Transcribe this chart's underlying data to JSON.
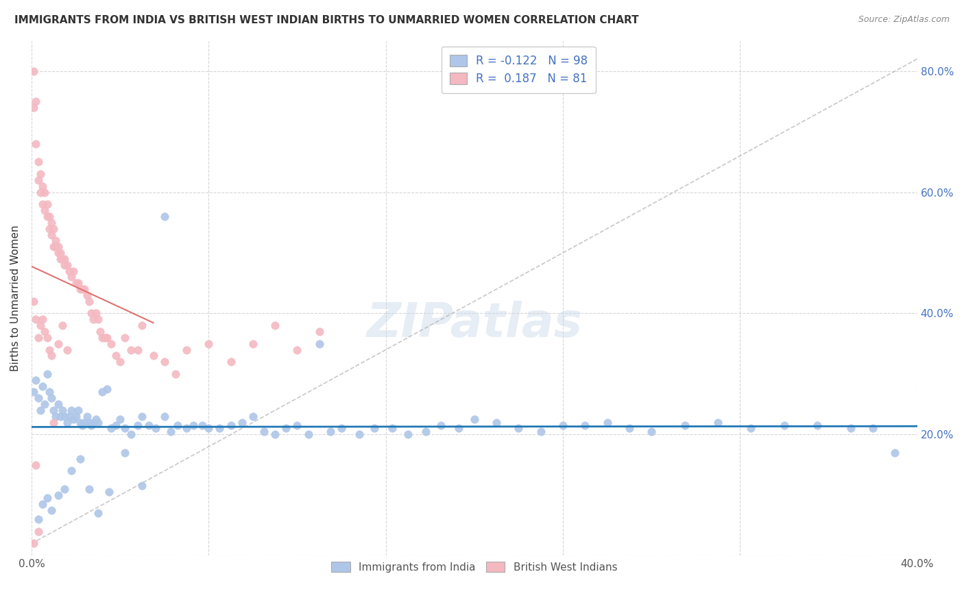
{
  "title": "IMMIGRANTS FROM INDIA VS BRITISH WEST INDIAN BIRTHS TO UNMARRIED WOMEN CORRELATION CHART",
  "source": "Source: ZipAtlas.com",
  "ylabel": "Births to Unmarried Women",
  "xlim": [
    0.0,
    0.4
  ],
  "ylim": [
    0.0,
    0.85
  ],
  "R_india": -0.122,
  "N_india": 98,
  "R_bwi": 0.187,
  "N_bwi": 81,
  "legend_labels": [
    "Immigrants from India",
    "British West Indians"
  ],
  "color_india": "#aec6e8",
  "color_bwi": "#f4b8c1",
  "trendline_india_color": "#1f77b4",
  "trendline_bwi_color": "#e07070",
  "trendline_dashed_color": "#b0b0b0",
  "watermark": "ZIPatlas",
  "india_x": [
    0.001,
    0.002,
    0.003,
    0.004,
    0.005,
    0.006,
    0.007,
    0.008,
    0.009,
    0.01,
    0.011,
    0.012,
    0.013,
    0.014,
    0.015,
    0.016,
    0.017,
    0.018,
    0.019,
    0.02,
    0.021,
    0.022,
    0.023,
    0.024,
    0.025,
    0.026,
    0.027,
    0.028,
    0.029,
    0.03,
    0.032,
    0.034,
    0.036,
    0.038,
    0.04,
    0.042,
    0.045,
    0.048,
    0.05,
    0.053,
    0.056,
    0.06,
    0.063,
    0.066,
    0.07,
    0.073,
    0.077,
    0.08,
    0.085,
    0.09,
    0.095,
    0.1,
    0.105,
    0.11,
    0.115,
    0.12,
    0.125,
    0.13,
    0.135,
    0.14,
    0.148,
    0.155,
    0.163,
    0.17,
    0.178,
    0.185,
    0.193,
    0.2,
    0.21,
    0.22,
    0.23,
    0.24,
    0.25,
    0.26,
    0.27,
    0.28,
    0.295,
    0.31,
    0.325,
    0.34,
    0.355,
    0.37,
    0.38,
    0.39,
    0.003,
    0.005,
    0.007,
    0.009,
    0.012,
    0.015,
    0.018,
    0.022,
    0.026,
    0.03,
    0.035,
    0.042,
    0.05,
    0.06
  ],
  "india_y": [
    0.27,
    0.29,
    0.26,
    0.24,
    0.28,
    0.25,
    0.3,
    0.27,
    0.26,
    0.24,
    0.23,
    0.25,
    0.23,
    0.24,
    0.23,
    0.22,
    0.23,
    0.24,
    0.225,
    0.23,
    0.24,
    0.22,
    0.215,
    0.22,
    0.23,
    0.22,
    0.215,
    0.22,
    0.225,
    0.22,
    0.27,
    0.275,
    0.21,
    0.215,
    0.225,
    0.21,
    0.2,
    0.215,
    0.23,
    0.215,
    0.21,
    0.23,
    0.205,
    0.215,
    0.21,
    0.215,
    0.215,
    0.21,
    0.21,
    0.215,
    0.22,
    0.23,
    0.205,
    0.2,
    0.21,
    0.215,
    0.2,
    0.35,
    0.205,
    0.21,
    0.2,
    0.21,
    0.21,
    0.2,
    0.205,
    0.215,
    0.21,
    0.225,
    0.22,
    0.21,
    0.205,
    0.215,
    0.215,
    0.22,
    0.21,
    0.205,
    0.215,
    0.22,
    0.21,
    0.215,
    0.215,
    0.21,
    0.21,
    0.17,
    0.06,
    0.085,
    0.095,
    0.075,
    0.1,
    0.11,
    0.14,
    0.16,
    0.11,
    0.07,
    0.105,
    0.17,
    0.115,
    0.56
  ],
  "bwi_x": [
    0.001,
    0.001,
    0.002,
    0.002,
    0.003,
    0.003,
    0.004,
    0.004,
    0.005,
    0.005,
    0.006,
    0.006,
    0.007,
    0.007,
    0.008,
    0.008,
    0.009,
    0.009,
    0.01,
    0.01,
    0.011,
    0.011,
    0.012,
    0.012,
    0.013,
    0.013,
    0.014,
    0.015,
    0.015,
    0.016,
    0.017,
    0.018,
    0.019,
    0.02,
    0.021,
    0.022,
    0.023,
    0.024,
    0.025,
    0.026,
    0.027,
    0.028,
    0.029,
    0.03,
    0.031,
    0.032,
    0.033,
    0.034,
    0.036,
    0.038,
    0.04,
    0.042,
    0.045,
    0.048,
    0.05,
    0.055,
    0.06,
    0.065,
    0.07,
    0.08,
    0.09,
    0.1,
    0.11,
    0.12,
    0.13,
    0.001,
    0.002,
    0.003,
    0.004,
    0.005,
    0.006,
    0.007,
    0.008,
    0.009,
    0.01,
    0.012,
    0.014,
    0.016,
    0.001,
    0.002,
    0.003
  ],
  "bwi_y": [
    0.8,
    0.74,
    0.75,
    0.68,
    0.65,
    0.62,
    0.63,
    0.6,
    0.61,
    0.58,
    0.6,
    0.57,
    0.58,
    0.56,
    0.56,
    0.54,
    0.55,
    0.53,
    0.54,
    0.51,
    0.52,
    0.51,
    0.51,
    0.5,
    0.5,
    0.49,
    0.49,
    0.49,
    0.48,
    0.48,
    0.47,
    0.46,
    0.47,
    0.45,
    0.45,
    0.44,
    0.44,
    0.44,
    0.43,
    0.42,
    0.4,
    0.39,
    0.4,
    0.39,
    0.37,
    0.36,
    0.36,
    0.36,
    0.35,
    0.33,
    0.32,
    0.36,
    0.34,
    0.34,
    0.38,
    0.33,
    0.32,
    0.3,
    0.34,
    0.35,
    0.32,
    0.35,
    0.38,
    0.34,
    0.37,
    0.42,
    0.39,
    0.36,
    0.38,
    0.39,
    0.37,
    0.36,
    0.34,
    0.33,
    0.22,
    0.35,
    0.38,
    0.34,
    0.02,
    0.15,
    0.04
  ]
}
